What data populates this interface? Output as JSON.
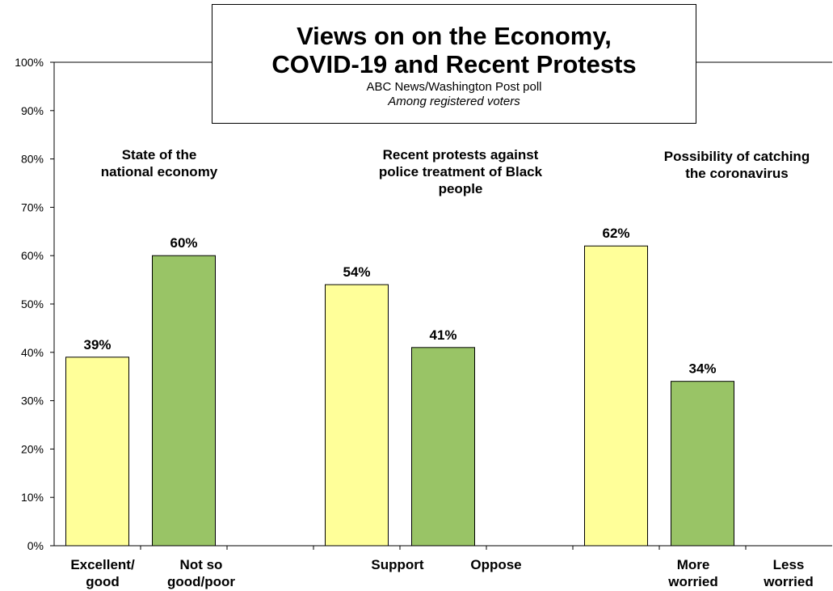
{
  "title": {
    "line1": "Views on on the Economy,",
    "line2": "COVID-19 and Recent Protests",
    "subtitle": "ABC News/Washington Post poll",
    "note": "Among registered voters"
  },
  "groups": [
    {
      "line1": "State of the",
      "line2": "national economy",
      "line3": ""
    },
    {
      "line1": "Recent protests against",
      "line2": "police treatment of Black",
      "line3": "people"
    },
    {
      "line1": "Possibility of catching",
      "line2": "the coronavirus",
      "line3": ""
    }
  ],
  "categories": [
    {
      "line1": "Excellent/",
      "line2": "good"
    },
    {
      "line1": "Not so",
      "line2": "good/poor"
    },
    {
      "line1": "Support",
      "line2": ""
    },
    {
      "line1": "Oppose",
      "line2": ""
    },
    {
      "line1": "More",
      "line2": "worried"
    },
    {
      "line1": "Less",
      "line2": "worried"
    }
  ],
  "colors": {
    "positive": "#FFFF99",
    "negative": "#99C466",
    "outline": "#000000"
  },
  "chart_data": {
    "type": "bar",
    "title": "Views on on the Economy, COVID-19 and Recent Protests",
    "subtitle": "ABC News/Washington Post poll",
    "categories": [
      "Excellent/ good",
      "Not so good/poor",
      "Support",
      "Oppose",
      "More worried",
      "Less worried"
    ],
    "values": [
      39,
      60,
      54,
      41,
      62,
      34
    ],
    "value_labels": [
      "39%",
      "60%",
      "54%",
      "41%",
      "62%",
      "34%"
    ],
    "ylim": [
      0,
      100
    ],
    "yticks": [
      "0%",
      "10%",
      "20%",
      "30%",
      "40%",
      "50%",
      "60%",
      "70%",
      "80%",
      "90%",
      "100%"
    ],
    "ylabel": "",
    "xlabel": "",
    "grid": false,
    "legend": "none"
  }
}
